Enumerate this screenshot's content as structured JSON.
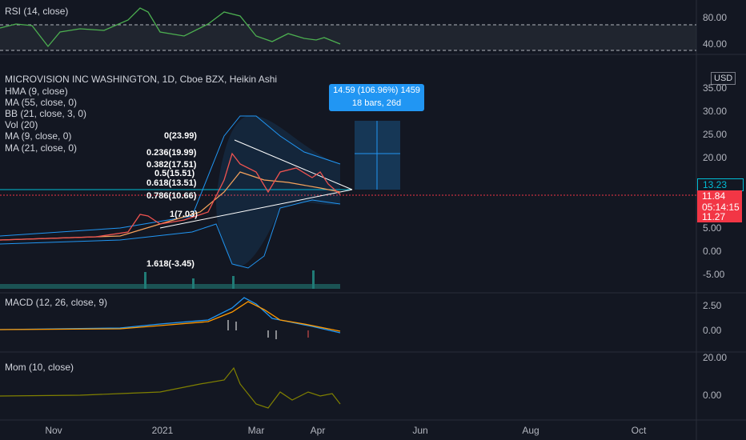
{
  "rsi": {
    "title": "RSI (14, close)",
    "ticks": [
      "80.00",
      "40.00"
    ]
  },
  "main": {
    "title": "MICROVISION INC WASHINGTON, 1D, Cboe BZX, Heikin Ashi",
    "indicators": [
      "HMA (9, close)",
      "MA (55, close, 0)",
      "BB (21, close, 3, 0)",
      "Vol (20)",
      "MA (9, close, 0)",
      "MA (21, close, 0)"
    ],
    "currency": "USD",
    "price_ticks": [
      "35.00",
      "30.00",
      "25.00",
      "20.00",
      "5.00",
      "0.00",
      "-5.00"
    ],
    "badges": {
      "alert": "13.23",
      "price": "11.84",
      "countdown": "05:14:15",
      "low": "11.27"
    },
    "fib": [
      "0(23.99)",
      "0.236(19.99)",
      "0.382(17.51)",
      "0.5(15.51)",
      "0.618(13.51)",
      "0.786(10.66)",
      "1(7.03)",
      "1.618(-3.45)"
    ],
    "measure": {
      "line1": "14.59 (106.96%) 1459",
      "line2": "18 bars, 26d"
    }
  },
  "macd": {
    "title": "MACD (12, 26, close, 9)",
    "ticks": [
      "2.50",
      "0.00"
    ]
  },
  "mom": {
    "title": "Mom (10, close)",
    "ticks": [
      "20.00",
      "0.00"
    ]
  },
  "x_axis": [
    "Nov",
    "2021",
    "Mar",
    "Apr",
    "Jun",
    "Aug",
    "Oct"
  ]
}
